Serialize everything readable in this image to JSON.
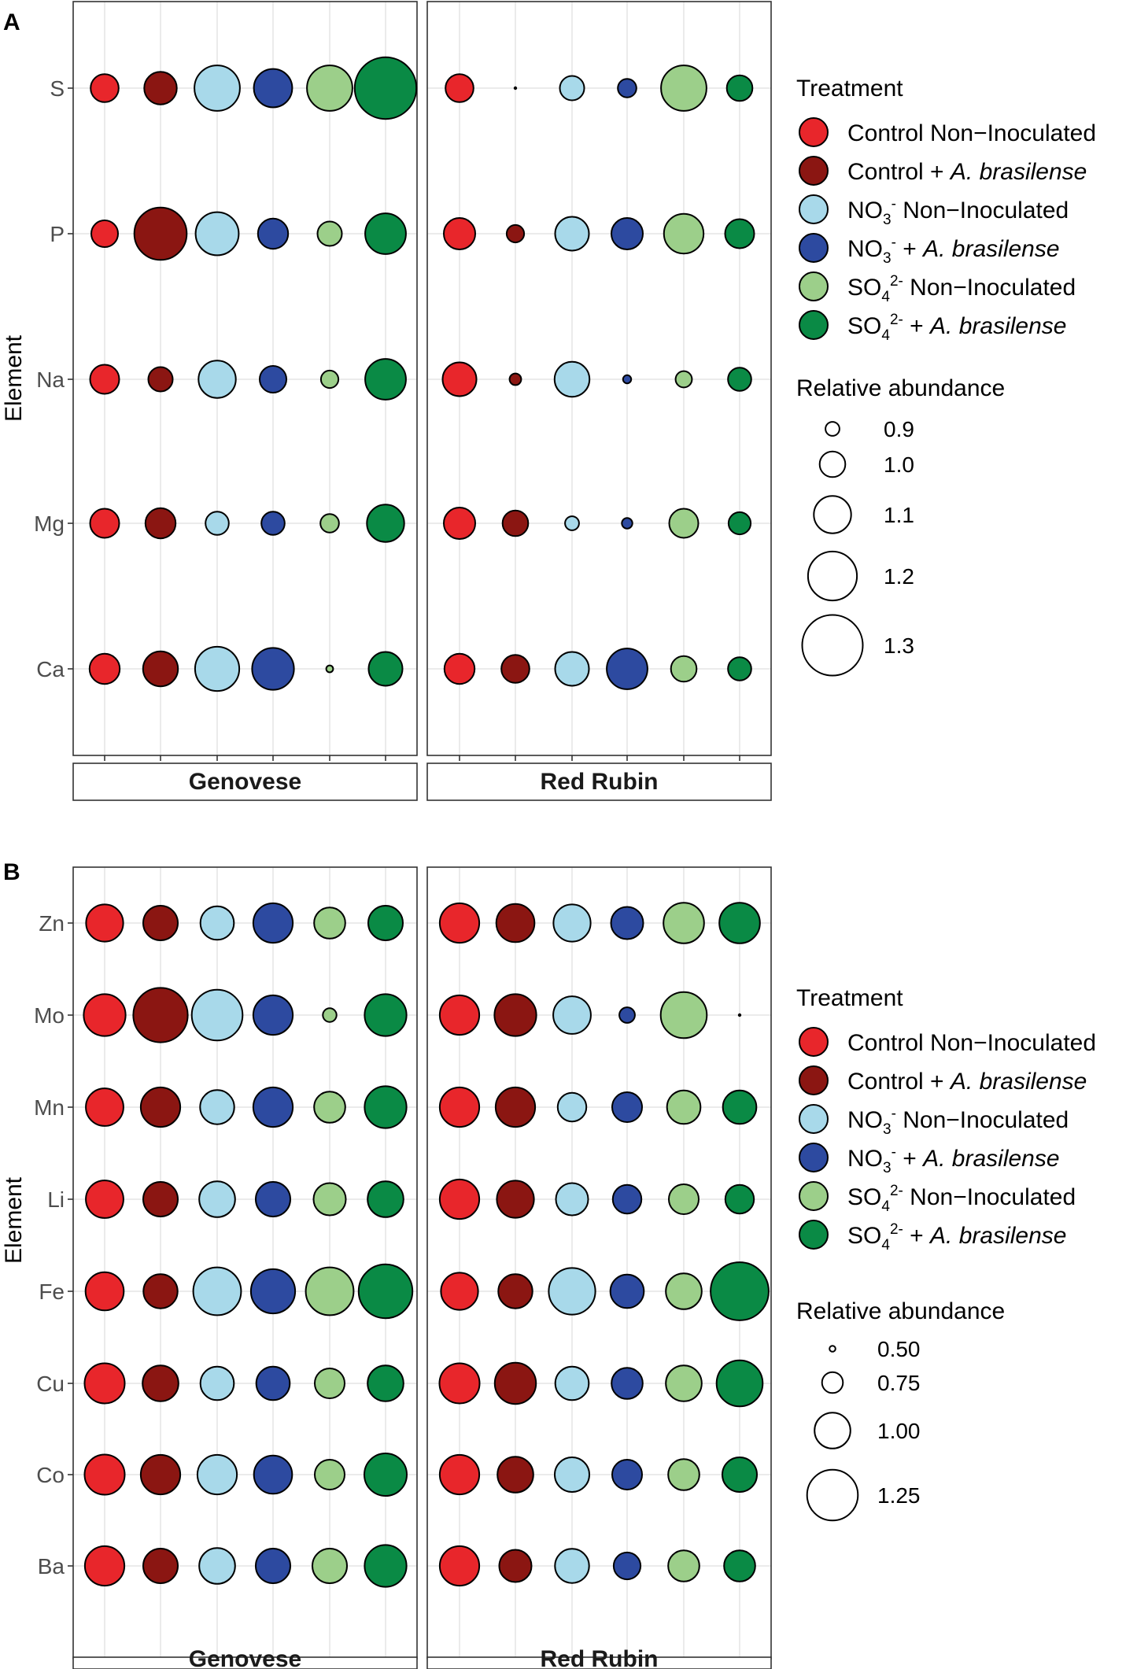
{
  "figure": {
    "treatments": [
      {
        "id": "ctrl_ni",
        "prefix": "Control Non−Inoculated",
        "species": "",
        "color": "#e8262b"
      },
      {
        "id": "ctrl_ab",
        "prefix": "Control + ",
        "species": "A. brasilense",
        "color": "#8b1612"
      },
      {
        "id": "no3_ni",
        "ion_base": "NO",
        "ion_sub": "3",
        "ion_sup": "-",
        "suffix": " Non−Inoculated",
        "species": "",
        "color": "#a8d9ea"
      },
      {
        "id": "no3_ab",
        "ion_base": "NO",
        "ion_sub": "3",
        "ion_sup": "-",
        "suffix": " + ",
        "species": "A. brasilense",
        "color": "#2d4aa0"
      },
      {
        "id": "so4_ni",
        "ion_base": "SO",
        "ion_sub": "4",
        "ion_sup": "2-",
        "suffix": " Non−Inoculated",
        "species": "",
        "color": "#9ccf8a"
      },
      {
        "id": "so4_ab",
        "ion_base": "SO",
        "ion_sub": "4",
        "ion_sup": "2-",
        "suffix": " + ",
        "species": "A. brasilense",
        "color": "#0a8a45"
      }
    ],
    "facets": [
      "Genovese",
      "Red Rubin"
    ]
  },
  "chart_data": [
    {
      "panel": "A",
      "type": "scatter",
      "ylabel": "Element",
      "elements": [
        "S",
        "P",
        "Na",
        "Mg",
        "Ca"
      ],
      "facets": [
        "Genovese",
        "Red Rubin"
      ],
      "legend_title": "Treatment",
      "size_legend_title": "Relative abundance",
      "size_legend_values": [
        0.9,
        1.0,
        1.1,
        1.2,
        1.3
      ],
      "size_legend_labels": [
        "0.9",
        "1.0",
        "1.1",
        "1.2",
        "1.3"
      ],
      "values": {
        "Genovese": {
          "S": [
            1.02,
            1.06,
            1.17,
            1.11,
            1.17,
            1.31
          ],
          "P": [
            1.01,
            1.23,
            1.15,
            1.04,
            0.99,
            1.13
          ],
          "Na": [
            1.03,
            0.99,
            1.1,
            1.01,
            0.93,
            1.13
          ],
          "Mg": [
            1.03,
            1.04,
            0.98,
            0.98,
            0.94,
            1.1
          ],
          "Ca": [
            1.04,
            1.08,
            1.16,
            1.14,
            0.84,
            1.07
          ]
        },
        "Red Rubin": {
          "S": [
            1.02,
            0.78,
            0.99,
            0.94,
            1.17,
            1.0
          ],
          "P": [
            1.05,
            0.93,
            1.07,
            1.05,
            1.12,
            1.03
          ],
          "Na": [
            1.07,
            0.88,
            1.08,
            0.85,
            0.92,
            0.98
          ],
          "Mg": [
            1.05,
            1.0,
            0.9,
            0.87,
            1.03,
            0.97
          ],
          "Ca": [
            1.04,
            1.02,
            1.07,
            1.13,
            1.0,
            0.98
          ]
        }
      }
    },
    {
      "panel": "B",
      "type": "scatter",
      "ylabel": "Element",
      "elements": [
        "Zn",
        "Mo",
        "Mn",
        "Li",
        "Fe",
        "Cu",
        "Co",
        "Ba"
      ],
      "facets": [
        "Genovese",
        "Red Rubin"
      ],
      "legend_title": "Treatment",
      "size_legend_title": "Relative abundance",
      "size_legend_values": [
        0.5,
        0.75,
        1.0,
        1.25
      ],
      "size_legend_labels": [
        "0.50",
        "0.75",
        "1.00",
        "1.25"
      ],
      "values": {
        "Genovese": {
          "Zn": [
            1.02,
            0.98,
            0.96,
            1.06,
            0.92,
            0.98
          ],
          "Mo": [
            1.1,
            1.31,
            1.25,
            1.06,
            0.63,
            1.1
          ],
          "Mn": [
            1.03,
            1.06,
            0.97,
            1.06,
            0.92,
            1.1
          ],
          "Li": [
            1.03,
            0.98,
            1.0,
            0.98,
            0.94,
            1.0
          ],
          "Fe": [
            1.04,
            0.97,
            1.2,
            1.14,
            1.2,
            1.3
          ],
          "Cu": [
            1.07,
            1.0,
            0.96,
            0.96,
            0.9,
            1.0
          ],
          "Co": [
            1.07,
            1.06,
            1.06,
            1.04,
            0.9,
            1.11
          ],
          "Ba": [
            1.06,
            0.98,
            1.0,
            0.98,
            0.98,
            1.1
          ]
        },
        "Red Rubin": {
          "Zn": [
            1.06,
            1.04,
            1.02,
            0.94,
            1.08,
            1.08
          ],
          "Mo": [
            1.06,
            1.1,
            1.03,
            0.66,
            1.17,
            0.03
          ],
          "Mn": [
            1.06,
            1.06,
            0.88,
            0.9,
            0.96,
            0.96
          ],
          "Li": [
            1.06,
            1.02,
            0.94,
            0.88,
            0.9,
            0.88
          ],
          "Fe": [
            1.02,
            0.97,
            1.18,
            0.96,
            1.0,
            1.37
          ],
          "Cu": [
            1.07,
            1.09,
            0.96,
            0.92,
            1.0,
            1.17
          ],
          "Co": [
            1.06,
            1.0,
            0.98,
            0.9,
            0.92,
            0.98
          ],
          "Ba": [
            1.06,
            0.94,
            0.97,
            0.85,
            0.92,
            0.92
          ]
        }
      }
    }
  ]
}
